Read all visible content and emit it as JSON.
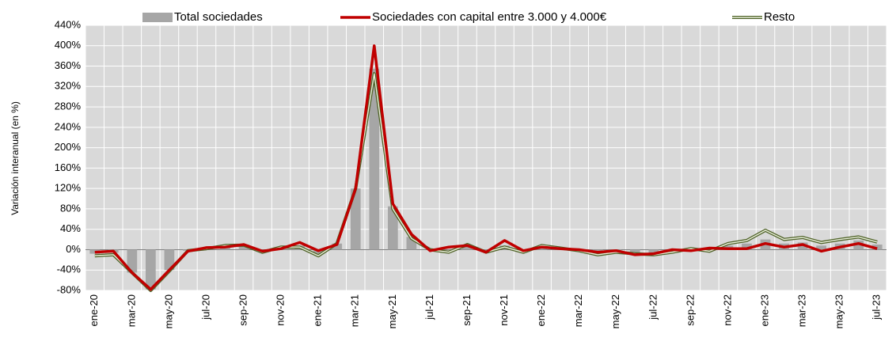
{
  "chart_data": {
    "type": "combo",
    "y_label": "Variación interanual (en %)",
    "categories": [
      "ene-20",
      null,
      "mar-20",
      null,
      "may-20",
      null,
      "jul-20",
      null,
      "sep-20",
      null,
      "nov-20",
      null,
      "ene-21",
      null,
      "mar-21",
      null,
      "may-21",
      null,
      "jul-21",
      null,
      "sep-21",
      null,
      "nov-21",
      null,
      "ene-22",
      null,
      "mar-22",
      null,
      "may-22",
      null,
      "jul-22",
      null,
      "sep-22",
      null,
      "nov-22",
      null,
      "ene-23",
      null,
      "mar-23",
      null,
      "may-23",
      null,
      "jul-23"
    ],
    "series": [
      {
        "name": "Total sociedades",
        "type": "bar",
        "color": "#a6a6a6",
        "values": [
          -8,
          -6,
          -45,
          -78,
          -40,
          -2,
          3,
          6,
          10,
          -4,
          3,
          8,
          -8,
          12,
          120,
          355,
          85,
          25,
          0,
          0,
          9,
          -5,
          8,
          -4,
          7,
          2,
          -1,
          -8,
          -4,
          -9,
          -9,
          -3,
          0,
          0,
          8,
          12,
          20,
          12,
          14,
          8,
          12,
          18,
          10
        ]
      },
      {
        "name": "Sociedades con capital entre 3.000 y 4.000€",
        "type": "line",
        "color": "#c00000",
        "values": [
          -5,
          -3,
          -45,
          -78,
          -40,
          -3,
          4,
          5,
          10,
          -3,
          2,
          14,
          -2,
          10,
          120,
          400,
          90,
          30,
          -2,
          5,
          8,
          -5,
          18,
          -2,
          5,
          2,
          0,
          -5,
          -2,
          -10,
          -8,
          0,
          -2,
          3,
          2,
          2,
          12,
          5,
          10,
          -3,
          5,
          12,
          2
        ]
      },
      {
        "name": "Resto",
        "type": "double-line",
        "color": "#4f6228",
        "values": [
          -12,
          -10,
          -45,
          -80,
          -42,
          -2,
          2,
          8,
          9,
          -5,
          5,
          5,
          -12,
          12,
          120,
          345,
          80,
          22,
          0,
          -5,
          10,
          -5,
          5,
          -5,
          8,
          3,
          -2,
          -10,
          -5,
          -8,
          -10,
          -5,
          2,
          -3,
          12,
          18,
          38,
          20,
          24,
          14,
          20,
          25,
          15
        ]
      }
    ],
    "ylim": [
      -80,
      440
    ],
    "yticks": [
      {
        "value": -80,
        "label": "-80%"
      },
      {
        "value": -40,
        "label": "-40%"
      },
      {
        "value": 0,
        "label": "0%"
      },
      {
        "value": 40,
        "label": "40%"
      },
      {
        "value": 80,
        "label": "80%"
      },
      {
        "value": 120,
        "label": "120%"
      },
      {
        "value": 160,
        "label": "160%"
      },
      {
        "value": 200,
        "label": "200%"
      },
      {
        "value": 240,
        "label": "240%"
      },
      {
        "value": 280,
        "label": "280%"
      },
      {
        "value": 320,
        "label": "320%"
      },
      {
        "value": 360,
        "label": "360%"
      },
      {
        "value": 400,
        "label": "400%"
      },
      {
        "value": 440,
        "label": "440%"
      }
    ],
    "grid": true,
    "legend": "top"
  }
}
